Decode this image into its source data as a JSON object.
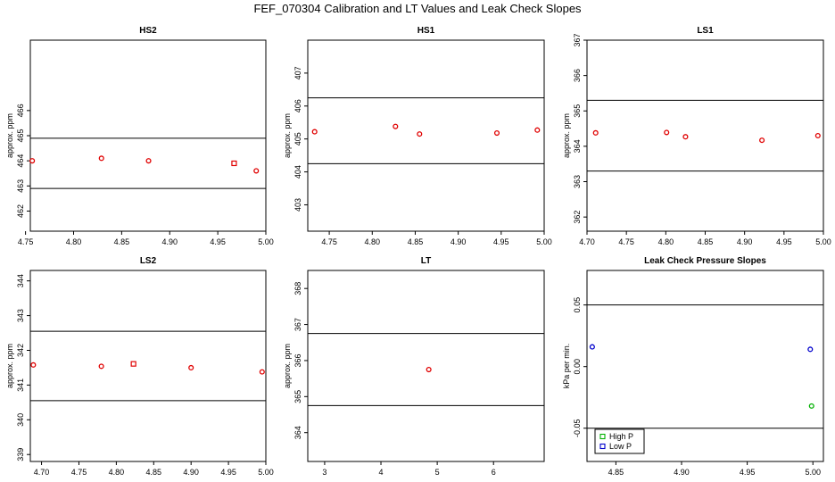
{
  "title": "FEF_070304  Calibration and LT Values and Leak Check Slopes",
  "colors": {
    "red": "#e00000",
    "green": "#00b000",
    "blue": "#0000cc",
    "line": "#000000"
  },
  "chart_data": [
    {
      "type": "scatter",
      "title": "HS2",
      "ylabel": "approx. ppm",
      "xlim": [
        4.755,
        5.0
      ],
      "ylim": [
        461.2,
        468.8
      ],
      "x_ticks": [
        4.75,
        4.8,
        4.85,
        4.9,
        4.95,
        5.0
      ],
      "x_tick_labels": [
        "4.75",
        "4.80",
        "4.85",
        "4.90",
        "4.95",
        "5.00"
      ],
      "y_ticks": [
        462,
        463,
        464,
        465,
        466
      ],
      "y_tick_labels": [
        "462",
        "463",
        "464",
        "465",
        "466"
      ],
      "hlines": [
        464.9,
        462.9
      ],
      "series": [
        {
          "color": "#e00000",
          "marker": "circle",
          "x": [
            4.757,
            4.829,
            4.878,
            4.99
          ],
          "y": [
            464.0,
            464.1,
            464.0,
            463.6
          ]
        },
        {
          "color": "#e00000",
          "marker": "square",
          "x": [
            4.967
          ],
          "y": [
            463.9
          ]
        }
      ]
    },
    {
      "type": "scatter",
      "title": "HS1",
      "ylabel": "approx. ppm",
      "xlim": [
        4.725,
        5.0
      ],
      "ylim": [
        402.2,
        408.0
      ],
      "x_ticks": [
        4.75,
        4.8,
        4.85,
        4.9,
        4.95,
        5.0
      ],
      "x_tick_labels": [
        "4.75",
        "4.80",
        "4.85",
        "4.90",
        "4.95",
        "5.00"
      ],
      "y_ticks": [
        403,
        404,
        405,
        406,
        407
      ],
      "y_tick_labels": [
        "403",
        "404",
        "405",
        "406",
        "407"
      ],
      "hlines": [
        406.25,
        404.25
      ],
      "series": [
        {
          "color": "#e00000",
          "marker": "circle",
          "x": [
            4.733,
            4.827,
            4.855,
            4.945,
            4.992
          ],
          "y": [
            405.22,
            405.38,
            405.15,
            405.18,
            405.27
          ]
        }
      ]
    },
    {
      "type": "scatter",
      "title": "LS1",
      "ylabel": "approx. ppm",
      "xlim": [
        4.7,
        5.0
      ],
      "ylim": [
        361.6,
        367.0
      ],
      "x_ticks": [
        4.7,
        4.75,
        4.8,
        4.85,
        4.9,
        4.95,
        5.0
      ],
      "x_tick_labels": [
        "4.70",
        "4.75",
        "4.80",
        "4.85",
        "4.90",
        "4.95",
        "5.00"
      ],
      "y_ticks": [
        362,
        363,
        364,
        365,
        366,
        367
      ],
      "y_tick_labels": [
        "362",
        "363",
        "364",
        "365",
        "366",
        "367"
      ],
      "hlines": [
        365.3,
        363.3
      ],
      "series": [
        {
          "color": "#e00000",
          "marker": "circle",
          "x": [
            4.711,
            4.801,
            4.825,
            4.922,
            4.993
          ],
          "y": [
            364.38,
            364.39,
            364.27,
            364.17,
            364.3
          ]
        }
      ]
    },
    {
      "type": "scatter",
      "title": "LS2",
      "ylabel": "approx. ppm",
      "xlim": [
        4.685,
        5.0
      ],
      "ylim": [
        338.8,
        344.3
      ],
      "x_ticks": [
        4.7,
        4.75,
        4.8,
        4.85,
        4.9,
        4.95,
        5.0
      ],
      "x_tick_labels": [
        "4.70",
        "4.75",
        "4.80",
        "4.85",
        "4.90",
        "4.95",
        "5.00"
      ],
      "y_ticks": [
        339,
        340,
        341,
        342,
        343,
        344
      ],
      "y_tick_labels": [
        "339",
        "340",
        "341",
        "342",
        "343",
        "344"
      ],
      "hlines": [
        342.55,
        340.55
      ],
      "series": [
        {
          "color": "#e00000",
          "marker": "circle",
          "x": [
            4.689,
            4.78,
            4.9,
            4.995
          ],
          "y": [
            341.58,
            341.54,
            341.5,
            341.38
          ]
        },
        {
          "color": "#e00000",
          "marker": "square",
          "x": [
            4.823
          ],
          "y": [
            341.61
          ]
        }
      ]
    },
    {
      "type": "scatter",
      "title": "LT",
      "ylabel": "approx. ppm",
      "xlim": [
        2.7,
        6.9
      ],
      "ylim": [
        363.2,
        368.5
      ],
      "x_ticks": [
        3,
        4,
        5,
        6
      ],
      "x_tick_labels": [
        "3",
        "4",
        "5",
        "6"
      ],
      "y_ticks": [
        364,
        365,
        366,
        367,
        368
      ],
      "y_tick_labels": [
        "364",
        "365",
        "366",
        "367",
        "368"
      ],
      "hlines": [
        366.75,
        364.75
      ],
      "series": [
        {
          "color": "#e00000",
          "marker": "circle",
          "x": [
            4.85
          ],
          "y": [
            365.75
          ]
        }
      ]
    },
    {
      "type": "scatter",
      "title": "Leak Check Pressure Slopes",
      "ylabel": "kPa per min.",
      "xlim": [
        4.828,
        5.008
      ],
      "ylim": [
        -0.077,
        0.078
      ],
      "x_ticks": [
        4.85,
        4.9,
        4.95,
        5.0
      ],
      "x_tick_labels": [
        "4.85",
        "4.90",
        "4.95",
        "5.00"
      ],
      "y_ticks": [
        -0.05,
        0.0,
        0.05
      ],
      "y_tick_labels": [
        "-0.05",
        "0.00",
        "0.05"
      ],
      "hlines": [
        0.05,
        -0.05
      ],
      "legend": {
        "position": "bottom-left",
        "entries": [
          "High P",
          "Low P"
        ]
      },
      "series": [
        {
          "name": "High P",
          "color": "#00b000",
          "marker": "circle",
          "x": [
            4.999
          ],
          "y": [
            -0.032
          ]
        },
        {
          "name": "Low P",
          "color": "#0000cc",
          "marker": "circle",
          "x": [
            4.832,
            4.998
          ],
          "y": [
            0.016,
            0.014
          ]
        }
      ]
    }
  ]
}
